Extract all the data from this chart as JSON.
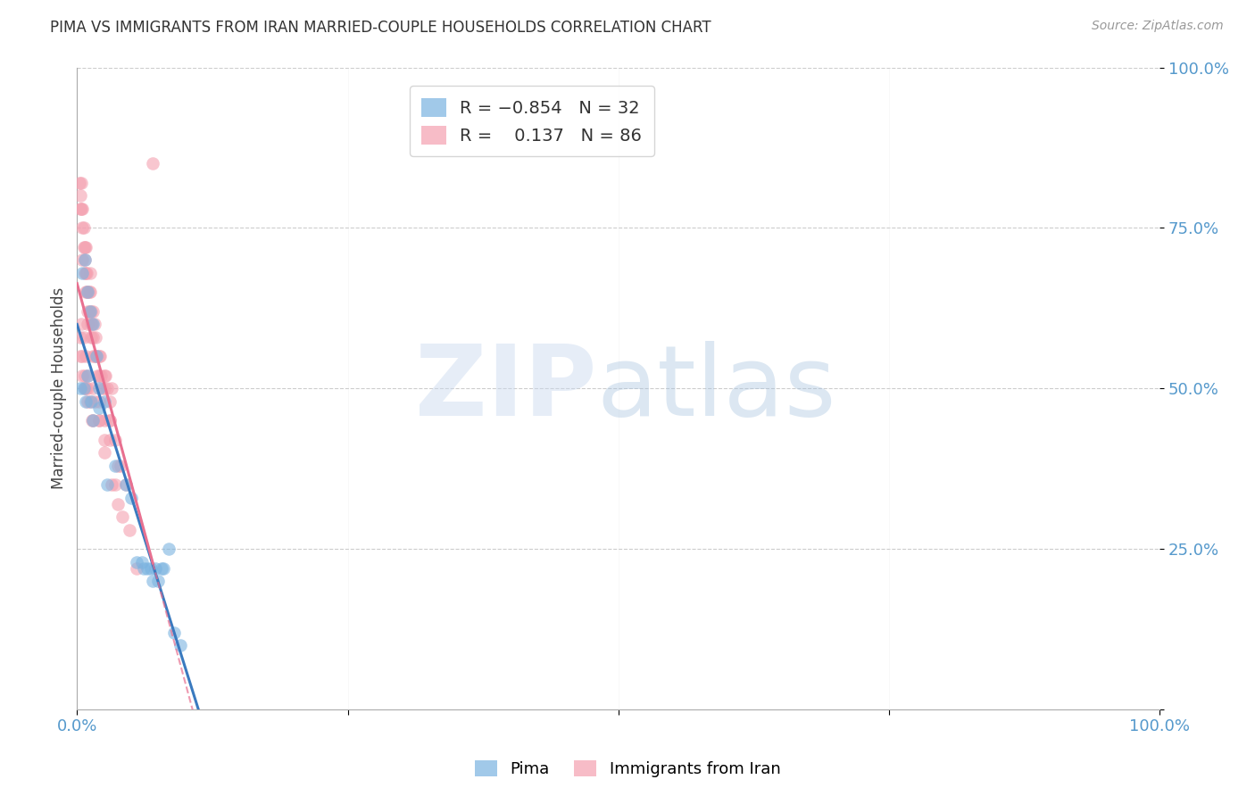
{
  "title": "PIMA VS IMMIGRANTS FROM IRAN MARRIED-COUPLE HOUSEHOLDS CORRELATION CHART",
  "source": "Source: ZipAtlas.com",
  "ylabel": "Married-couple Households",
  "blue_color": "#7ab3e0",
  "pink_color": "#f4a0b0",
  "blue_line_color": "#3a7abf",
  "pink_line_color": "#e87090",
  "watermark_zip_color": "#c8d8ee",
  "watermark_atlas_color": "#a8c0e0",
  "pima_x": [
    0.5,
    0.7,
    1.0,
    1.2,
    1.5,
    1.8,
    2.0,
    2.5,
    3.5,
    4.5,
    5.0,
    5.5,
    6.0,
    6.2,
    6.5,
    6.8,
    7.0,
    7.2,
    7.5,
    7.8,
    8.0,
    8.5,
    9.0,
    0.3,
    0.6,
    0.8,
    1.0,
    1.3,
    1.5,
    2.0,
    2.8,
    9.5
  ],
  "pima_y": [
    68,
    70,
    65,
    62,
    60,
    55,
    50,
    48,
    38,
    35,
    33,
    23,
    23,
    22,
    22,
    22,
    20,
    22,
    20,
    22,
    22,
    25,
    12,
    50,
    50,
    48,
    52,
    48,
    45,
    47,
    35,
    10
  ],
  "iran_x": [
    0.2,
    0.3,
    0.3,
    0.4,
    0.4,
    0.5,
    0.5,
    0.5,
    0.6,
    0.6,
    0.7,
    0.7,
    0.7,
    0.8,
    0.8,
    0.8,
    0.9,
    0.9,
    1.0,
    1.0,
    1.0,
    1.1,
    1.1,
    1.2,
    1.2,
    1.3,
    1.3,
    1.3,
    1.4,
    1.5,
    1.5,
    1.5,
    1.6,
    1.6,
    1.7,
    1.8,
    1.9,
    2.0,
    2.0,
    2.1,
    2.2,
    2.3,
    2.5,
    2.5,
    2.6,
    2.8,
    3.0,
    3.2,
    3.5,
    3.8,
    0.3,
    0.5,
    0.7,
    0.8,
    1.0,
    1.2,
    1.4,
    1.6,
    2.0,
    2.5,
    3.0,
    0.4,
    0.6,
    0.8,
    1.0,
    1.5,
    2.0,
    2.5,
    3.0,
    4.0,
    0.3,
    0.5,
    0.7,
    1.0,
    1.5,
    2.0,
    3.5,
    7.0,
    3.0,
    4.5,
    2.5,
    3.8,
    4.2,
    3.2,
    4.8,
    5.5
  ],
  "iran_y": [
    82,
    80,
    78,
    82,
    78,
    78,
    75,
    70,
    75,
    72,
    72,
    70,
    68,
    72,
    68,
    65,
    68,
    65,
    65,
    62,
    60,
    65,
    62,
    68,
    65,
    62,
    60,
    58,
    60,
    62,
    58,
    55,
    60,
    55,
    58,
    55,
    52,
    55,
    52,
    55,
    52,
    50,
    52,
    50,
    52,
    50,
    48,
    50,
    42,
    38,
    58,
    55,
    52,
    50,
    50,
    48,
    45,
    48,
    45,
    42,
    45,
    60,
    58,
    55,
    52,
    50,
    48,
    45,
    45,
    38,
    55,
    52,
    50,
    48,
    45,
    45,
    35,
    85,
    42,
    35,
    40,
    32,
    30,
    35,
    28,
    22
  ]
}
